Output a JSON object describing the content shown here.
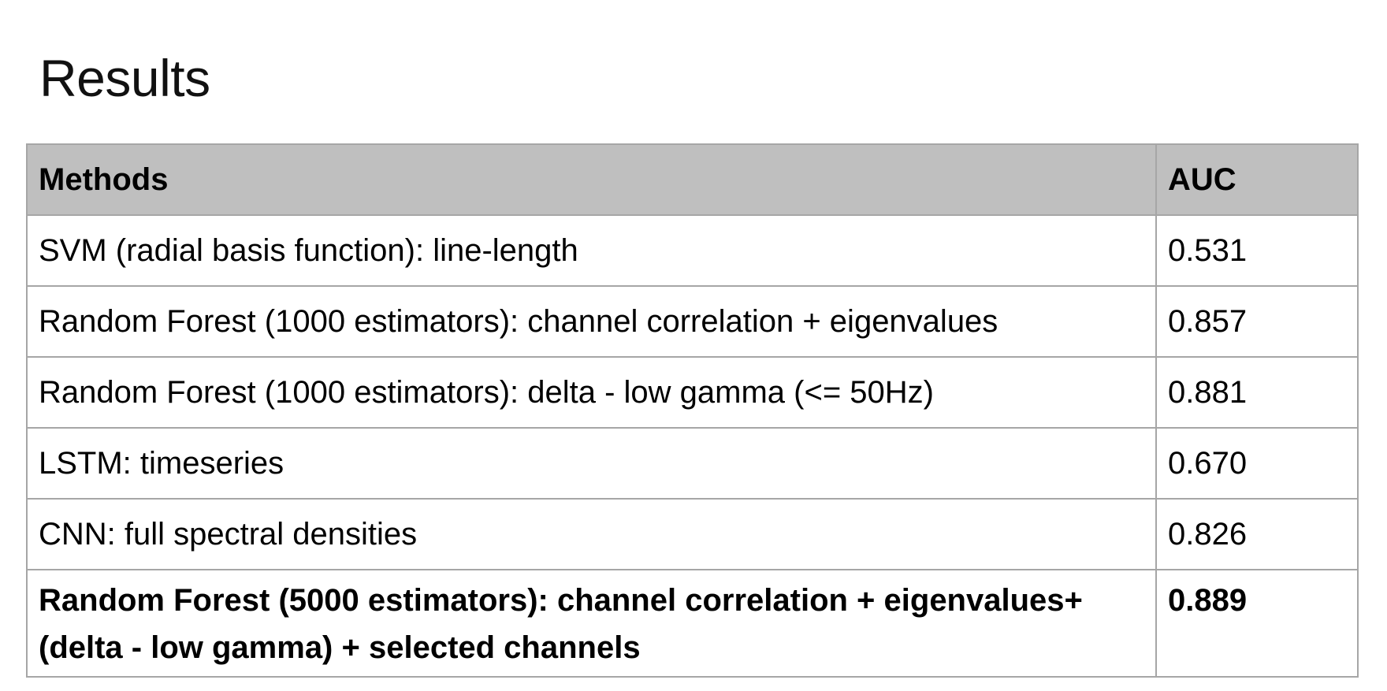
{
  "title": "Results",
  "table": {
    "headers": {
      "method": "Methods",
      "auc": "AUC"
    },
    "rows": [
      {
        "method": "SVM (radial basis function): line-length",
        "auc": "0.531",
        "bold": false
      },
      {
        "method": "Random Forest (1000 estimators): channel correlation + eigenvalues",
        "auc": "0.857",
        "bold": false
      },
      {
        "method": "Random Forest (1000 estimators): delta - low gamma (<= 50Hz)",
        "auc": "0.881",
        "bold": false
      },
      {
        "method": "LSTM: timeseries",
        "auc": "0.670",
        "bold": false
      },
      {
        "method": "CNN: full spectral densities",
        "auc": "0.826",
        "bold": false
      },
      {
        "method": "Random Forest (5000 estimators): channel correlation + eigenvalues+ (delta - low gamma) + selected channels",
        "auc": "0.889",
        "bold": true
      }
    ]
  },
  "colors": {
    "header_background": "#bfbfbf",
    "border": "#a6a6a6",
    "text": "#000000"
  }
}
